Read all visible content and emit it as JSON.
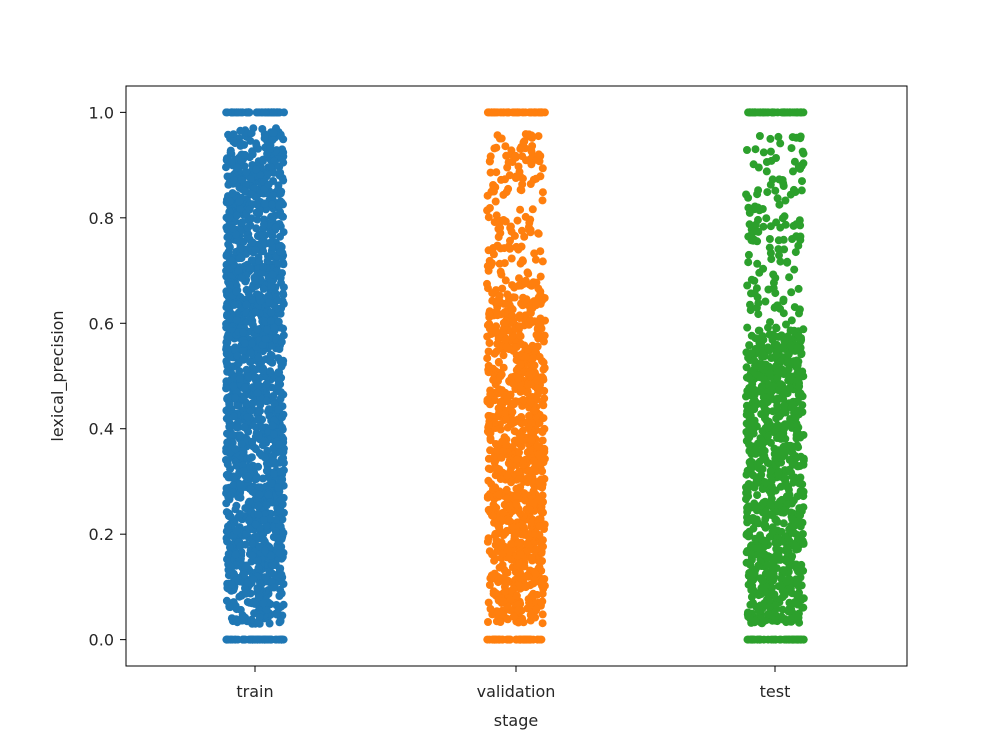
{
  "chart_data": {
    "type": "scatter",
    "subtype": "strip",
    "xlabel": "stage",
    "ylabel": "lexical_precision",
    "categories": [
      "train",
      "validation",
      "test"
    ],
    "colors": [
      "#1f77b4",
      "#ff7f0e",
      "#2ca02c"
    ],
    "ylim": [
      -0.05,
      1.05
    ],
    "yticks": [
      0.0,
      0.2,
      0.4,
      0.6,
      0.8,
      1.0
    ],
    "ytick_labels": [
      "0.0",
      "0.2",
      "0.4",
      "0.6",
      "0.8",
      "1.0"
    ],
    "grid": false,
    "legend": "none",
    "series": [
      {
        "category": "train",
        "density": "very dense",
        "values_summary": "continuous band from ~0.03 to ~0.97, heavy clusters at 0.0 and 1.0",
        "min": 0.0,
        "max": 1.0,
        "gap_below": 0.03,
        "gap_above": 0.97
      },
      {
        "category": "validation",
        "density": "dense",
        "values_summary": "dense from ~0.03 to ~0.65, sparser from ~0.65 to ~0.96, clusters at 0.0 and 1.0",
        "min": 0.0,
        "max": 1.0,
        "gap_below": 0.03,
        "gap_above": 0.96
      },
      {
        "category": "test",
        "density": "dense",
        "values_summary": "dense from ~0.03 to ~0.6, sparser from ~0.6 to ~0.96, clusters at 0.0 and 1.0",
        "min": 0.0,
        "max": 1.0,
        "gap_below": 0.03,
        "gap_above": 0.96
      }
    ]
  }
}
